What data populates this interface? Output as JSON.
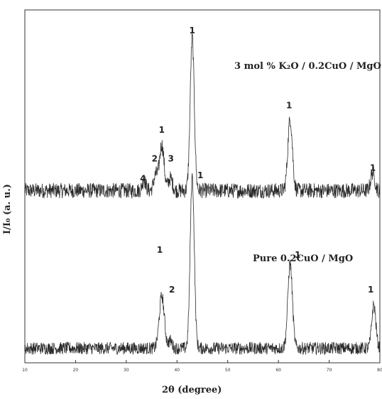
{
  "chart_data": {
    "type": "line",
    "title": "",
    "xlabel": "2θ (degree)",
    "ylabel": "I/I₀ (a. u.)",
    "xlim": [
      10,
      80
    ],
    "x_ticks": [
      "10",
      "20",
      "30",
      "40",
      "50",
      "60",
      "70",
      "80"
    ],
    "grid": false,
    "series": [
      {
        "name": "3 mol % K₂O / 0.2CuO / MgO",
        "baseline": 0.17,
        "noise": 0.1,
        "peaks": [
          {
            "x": 33.5,
            "y": 0.07,
            "w": 0.35
          },
          {
            "x": 35.8,
            "y": 0.1,
            "w": 0.4
          },
          {
            "x": 37.0,
            "y": 0.3,
            "w": 0.45
          },
          {
            "x": 38.7,
            "y": 0.08,
            "w": 0.4
          },
          {
            "x": 43.0,
            "y": 1.0,
            "w": 0.4
          },
          {
            "x": 62.3,
            "y": 0.47,
            "w": 0.45
          },
          {
            "x": 78.6,
            "y": 0.12,
            "w": 0.4
          }
        ],
        "labels": [
          {
            "text": "4",
            "x": 33.3,
            "y": 0.23
          },
          {
            "text": "2",
            "x": 35.6,
            "y": 0.36
          },
          {
            "text": "1",
            "x": 37.0,
            "y": 0.55
          },
          {
            "text": "3",
            "x": 38.8,
            "y": 0.36
          },
          {
            "text": "1",
            "x": 43.0,
            "y": 1.2
          },
          {
            "text": "1",
            "x": 62.1,
            "y": 0.71
          },
          {
            "text": "1",
            "x": 78.6,
            "y": 0.3
          }
        ]
      },
      {
        "name": "Pure 0.2CuO / MgO",
        "baseline": 0.1,
        "noise": 0.1,
        "peaks": [
          {
            "x": 37.0,
            "y": 0.42,
            "w": 0.5
          },
          {
            "x": 38.7,
            "y": 0.06,
            "w": 0.35
          },
          {
            "x": 43.0,
            "y": 1.38,
            "w": 0.4
          },
          {
            "x": 62.3,
            "y": 0.68,
            "w": 0.45
          },
          {
            "x": 78.8,
            "y": 0.35,
            "w": 0.4
          }
        ],
        "labels": [
          {
            "text": "1",
            "x": 36.6,
            "y": 0.87
          },
          {
            "text": "2",
            "x": 39.0,
            "y": 0.55
          },
          {
            "text": "1",
            "x": 44.6,
            "y": 1.47
          },
          {
            "text": "1",
            "x": 63.8,
            "y": 0.83
          },
          {
            "text": "1",
            "x": 78.2,
            "y": 0.55
          }
        ]
      }
    ]
  }
}
